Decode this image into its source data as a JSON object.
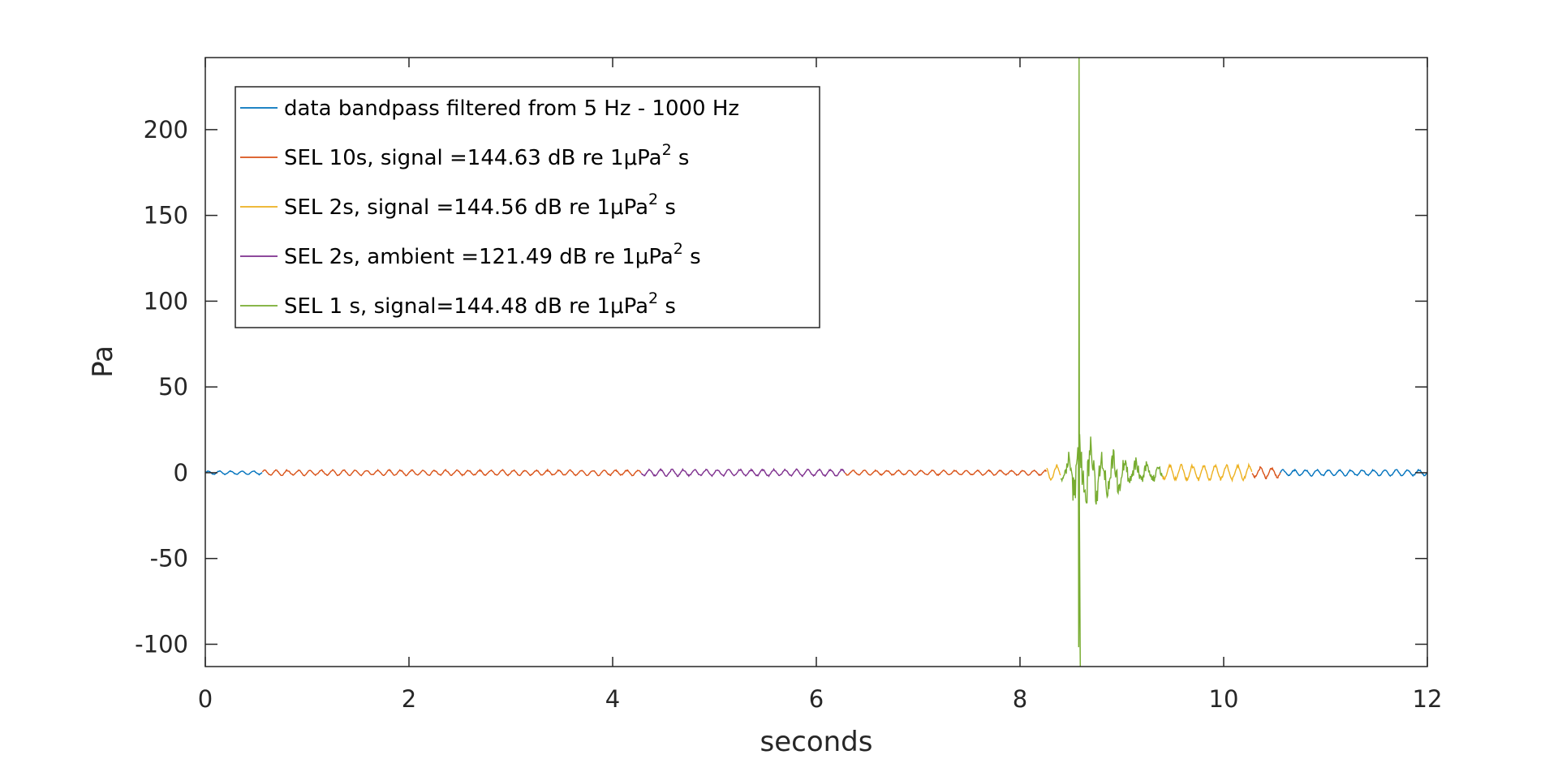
{
  "chart_data": {
    "type": "line",
    "title": "",
    "xlabel": "seconds",
    "ylabel": "Pa",
    "xlim": [
      0,
      12
    ],
    "ylim": [
      -113,
      242
    ],
    "xticks": [
      0,
      2,
      4,
      6,
      8,
      10,
      12
    ],
    "xtick_labels": [
      "0",
      "2",
      "4",
      "6",
      "8",
      "10",
      "12"
    ],
    "yticks": [
      -100,
      -50,
      0,
      50,
      100,
      150,
      200
    ],
    "ytick_labels": [
      "-100",
      "-50",
      "0",
      "50",
      "100",
      "150",
      "200"
    ],
    "grid": false,
    "legend_position": "top-left",
    "series": [
      {
        "name": "data bandpass filtered from 5 Hz - 1000 Hz",
        "legend": {
          "text": "data bandpass filtered from 5 Hz - 1000 Hz",
          "sup": "",
          "tail": ""
        },
        "color": "#0072BD",
        "segments": [
          {
            "x_start": 0.0,
            "x_end": 0.56,
            "amplitude": 1.2
          },
          {
            "x_start": 10.55,
            "x_end": 12.0,
            "amplitude": 2.0
          }
        ]
      },
      {
        "name": "SEL 10s, signal =144.63 dB re 1μPa² s",
        "legend": {
          "text": "SEL 10s, signal =144.63 dB re 1μPa",
          "sup": "2",
          "tail": " s"
        },
        "color": "#D95319",
        "segments": [
          {
            "x_start": 0.56,
            "x_end": 4.28,
            "amplitude": 1.8
          },
          {
            "x_start": 6.28,
            "x_end": 8.26,
            "amplitude": 1.6
          },
          {
            "x_start": 10.28,
            "x_end": 10.56,
            "amplitude": 3.5
          }
        ]
      },
      {
        "name": "SEL 2s, signal =144.56 dB re 1μPa² s",
        "legend": {
          "text": "SEL 2s, signal =144.56 dB re 1μPa",
          "sup": "2",
          "tail": " s"
        },
        "color": "#EDB120",
        "segments": [
          {
            "x_start": 8.26,
            "x_end": 8.4,
            "amplitude": 5
          },
          {
            "x_start": 9.4,
            "x_end": 10.28,
            "amplitude": 5
          }
        ]
      },
      {
        "name": "SEL 2s, ambient =121.49 dB re 1μPa² s",
        "legend": {
          "text": "SEL 2s, ambient =121.49 dB re 1μPa",
          "sup": "2",
          "tail": " s"
        },
        "color": "#7E2F8E",
        "segments": [
          {
            "x_start": 4.28,
            "x_end": 6.28,
            "amplitude": 2.2
          }
        ]
      },
      {
        "name": "SEL 1 s, signal=144.48 dB re 1μPa² s",
        "legend": {
          "text": "SEL 1 s, signal=144.48 dB re 1μPa",
          "sup": "2",
          "tail": " s"
        },
        "color": "#77AC30",
        "segments": [
          {
            "x_start": 8.4,
            "x_end": 9.4,
            "amplitude": 22
          }
        ],
        "peak": {
          "x": 8.58,
          "max": 242,
          "min": -113
        }
      }
    ]
  }
}
